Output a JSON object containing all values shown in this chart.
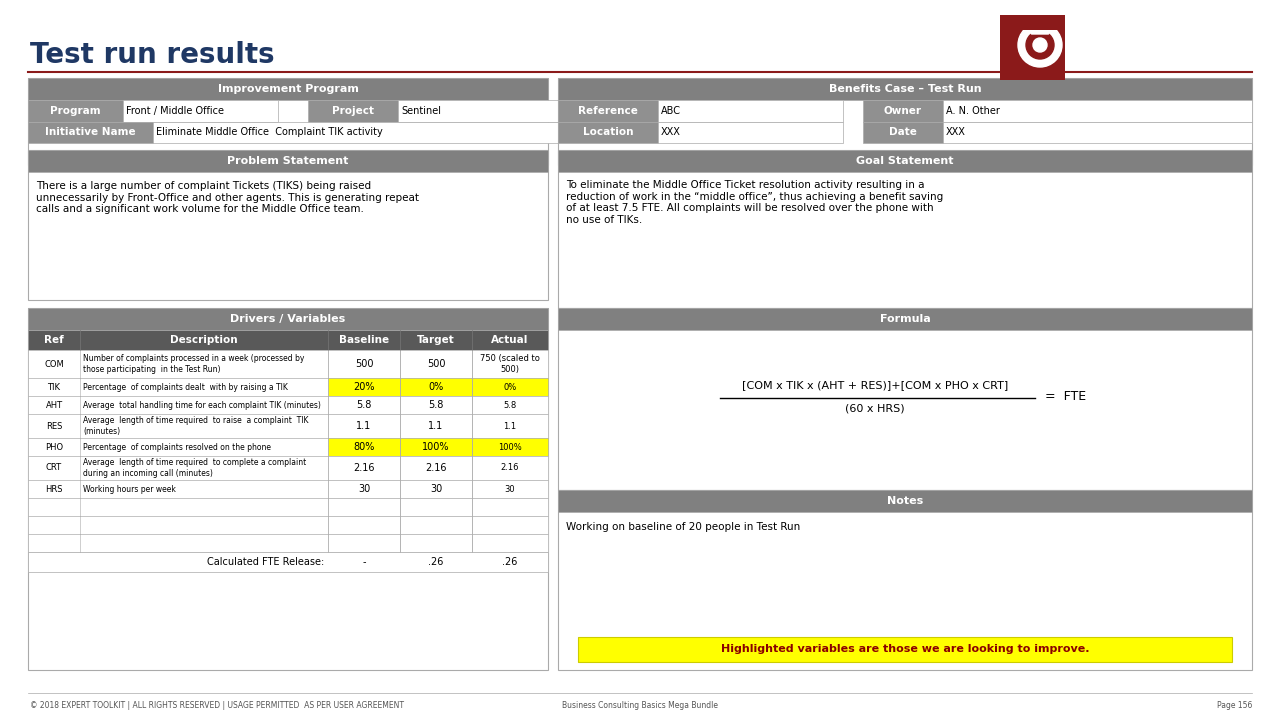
{
  "title": "Test run results",
  "title_color": "#1F3864",
  "title_fontsize": 20,
  "bg_color": "#FFFFFF",
  "header_gray": "#808080",
  "header_dark": "#595959",
  "yellow_highlight": "#FFFF00",
  "dark_red": "#7B1A1A",
  "left_panel": {
    "improvement_program": {
      "title": "Improvement Program",
      "program_label": "Program",
      "program_value": "Front / Middle Office",
      "project_label": "Project",
      "project_value": "Sentinel",
      "initiative_label": "Initiative Name",
      "initiative_value": "Eliminate Middle Office  Complaint TIK activity"
    },
    "problem_statement": {
      "title": "Problem Statement",
      "text": "There is a large number of complaint Tickets (TIKS) being raised\nunnecessarily by Front-Office and other agents. This is generating repeat\ncalls and a significant work volume for the Middle Office team."
    },
    "drivers_variables": {
      "title": "Drivers / Variables",
      "col_headers": [
        "Ref",
        "Description",
        "Baseline",
        "Target",
        "Actual"
      ],
      "rows": [
        {
          "ref": "COM",
          "desc": "Number of complaints processed in a week (processed by\nthose participating  in the Test Run)",
          "baseline": "500",
          "target": "500",
          "actual": "750 (scaled to\n500)",
          "highlight": false
        },
        {
          "ref": "TIK",
          "desc": "Percentage  of complaints dealt  with by raising a TIK",
          "baseline": "20%",
          "target": "0%",
          "actual": "0%",
          "highlight": true
        },
        {
          "ref": "AHT",
          "desc": "Average  total handling time for each complaint TIK (minutes)",
          "baseline": "5.8",
          "target": "5.8",
          "actual": "5.8",
          "highlight": false
        },
        {
          "ref": "RES",
          "desc": "Average  length of time required  to raise  a complaint  TIK\n(minutes)",
          "baseline": "1.1",
          "target": "1.1",
          "actual": "1.1",
          "highlight": false
        },
        {
          "ref": "PHO",
          "desc": "Percentage  of complaints resolved on the phone",
          "baseline": "80%",
          "target": "100%",
          "actual": "100%",
          "highlight": true
        },
        {
          "ref": "CRT",
          "desc": "Average  length of time required  to complete a complaint\nduring an incoming call (minutes)",
          "baseline": "2.16",
          "target": "2.16",
          "actual": "2.16",
          "highlight": false
        },
        {
          "ref": "HRS",
          "desc": "Working hours per week",
          "baseline": "30",
          "target": "30",
          "actual": "30",
          "highlight": false
        },
        {
          "ref": "",
          "desc": "",
          "baseline": "",
          "target": "",
          "actual": "",
          "highlight": false
        },
        {
          "ref": "",
          "desc": "",
          "baseline": "",
          "target": "",
          "actual": "",
          "highlight": false
        },
        {
          "ref": "",
          "desc": "",
          "baseline": "",
          "target": "",
          "actual": "",
          "highlight": false
        }
      ],
      "footer_label": "Calculated FTE Release:",
      "footer_values": [
        "-",
        ".26",
        ".26"
      ]
    }
  },
  "right_panel": {
    "benefits_case": {
      "title": "Benefits Case – Test Run",
      "reference_label": "Reference",
      "reference_value": "ABC",
      "owner_label": "Owner",
      "owner_value": "A. N. Other",
      "location_label": "Location",
      "location_value": "XXX",
      "date_label": "Date",
      "date_value": "XXX"
    },
    "goal_statement": {
      "title": "Goal Statement",
      "text": "To eliminate the Middle Office Ticket resolution activity resulting in a\nreduction of work in the “middle office”, thus achieving a benefit saving\nof at least 7.5 FTE. All complaints will be resolved over the phone with\nno use of TIKs."
    },
    "formula": {
      "title": "Formula",
      "numerator": "[COM x TIK x (AHT + RES)]+[COM x PHO x CRT]",
      "denominator": "(60 x HRS)",
      "equals": "=  FTE"
    },
    "notes": {
      "title": "Notes",
      "text": "Working on baseline of 20 people in Test Run",
      "highlight_text": "Highlighted variables are those we are looking to improve."
    }
  },
  "footer": {
    "left": "© 2018 EXPERT TOOLKIT | ALL RIGHTS RESERVED | USAGE PERMITTED  AS PER USER AGREEMENT",
    "center": "Business Consulting Basics Mega Bundle",
    "right": "Page 156"
  }
}
